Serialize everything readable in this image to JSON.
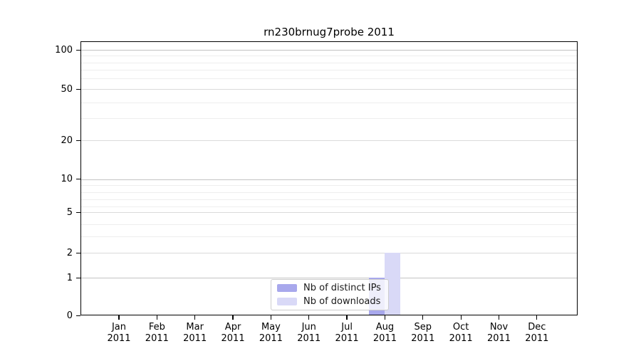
{
  "title": "rn230brnug7probe 2011",
  "chart_data": {
    "type": "bar",
    "title": "rn230brnug7probe 2011",
    "categories": [
      "Jan 2011",
      "Feb 2011",
      "Mar 2011",
      "Apr 2011",
      "May 2011",
      "Jun 2011",
      "Jul 2011",
      "Aug 2011",
      "Sep 2011",
      "Oct 2011",
      "Nov 2011",
      "Dec 2011"
    ],
    "series": [
      {
        "name": "Nb of distinct IPs",
        "color": "#a8a8ec",
        "values": [
          0,
          0,
          0,
          0,
          0,
          0,
          0,
          1,
          0,
          0,
          0,
          0
        ]
      },
      {
        "name": "Nb of downloads",
        "color": "#d9d9f7",
        "values": [
          0,
          0,
          0,
          0,
          0,
          0,
          0,
          2,
          0,
          0,
          0,
          0
        ]
      }
    ],
    "xlabel": "",
    "ylabel": "",
    "yscale": "log-like with linear-compressed region below 10",
    "ylim": [
      0,
      116
    ],
    "y_ticks_labeled": [
      {
        "label": "100",
        "value": 100
      },
      {
        "label": "50",
        "value": 50
      },
      {
        "label": "20",
        "value": 20
      },
      {
        "label": "10",
        "value": 10
      },
      {
        "label": "5",
        "value": 5
      },
      {
        "label": "2",
        "value": 2
      },
      {
        "label": "1",
        "value": 1
      },
      {
        "label": "0",
        "value": 0
      }
    ],
    "y_ticks_minor": [
      3,
      4,
      6,
      7,
      8,
      9,
      30,
      40,
      60,
      70,
      80,
      90
    ],
    "grid": "horizontal",
    "legend_position": "lower center, inside axes"
  },
  "legend": {
    "items": [
      {
        "label": "Nb of distinct IPs",
        "color": "#a8a8ec"
      },
      {
        "label": "Nb of downloads",
        "color": "#d9d9f7"
      }
    ]
  },
  "colors": {
    "bar_distinct_ips": "#a8a8ec",
    "bar_downloads": "#d9d9f7",
    "background": "#ffffff"
  }
}
